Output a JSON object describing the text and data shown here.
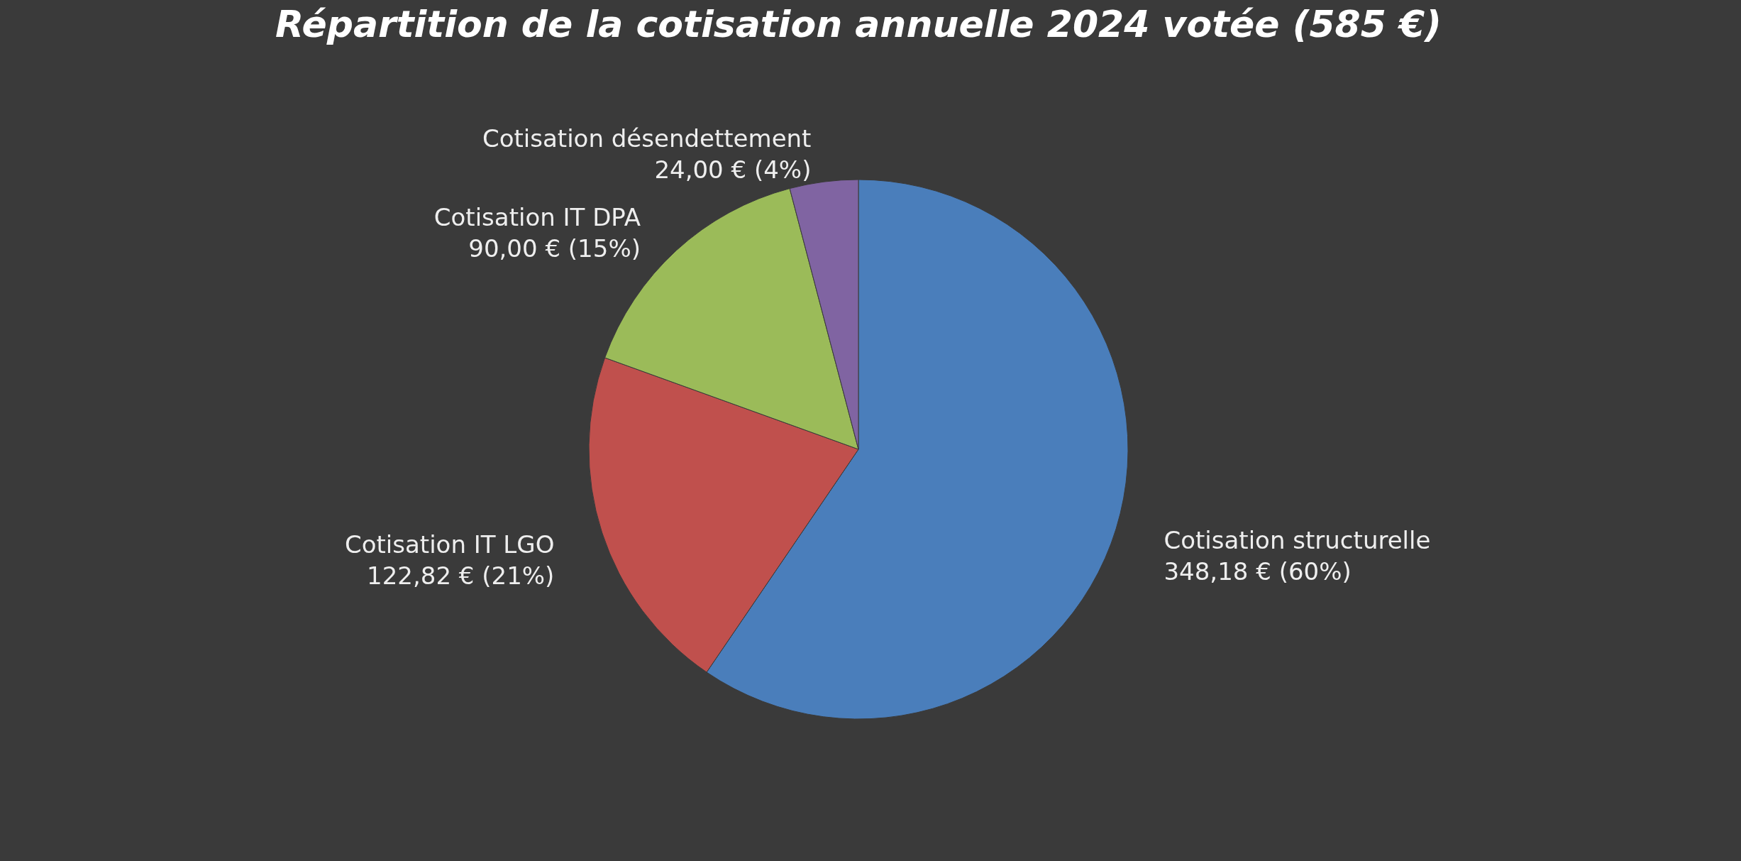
{
  "chart_data": {
    "type": "pie",
    "title": "Répartition de la cotisation annuelle 2024 votée (585 €)",
    "categories": [
      "Cotisation structurelle",
      "Cotisation IT LGO",
      "Cotisation IT DPA",
      "Cotisation désendettement"
    ],
    "values": [
      348.18,
      122.82,
      90.0,
      24.0
    ],
    "colors": [
      "#4a7ebb",
      "#c0504d",
      "#9bbb59",
      "#8064a2"
    ],
    "value_labels": [
      "348,18 € (60%)",
      "122,82 € (21%)",
      "90,00 € (15%)",
      "24,00 € (4%)"
    ]
  }
}
